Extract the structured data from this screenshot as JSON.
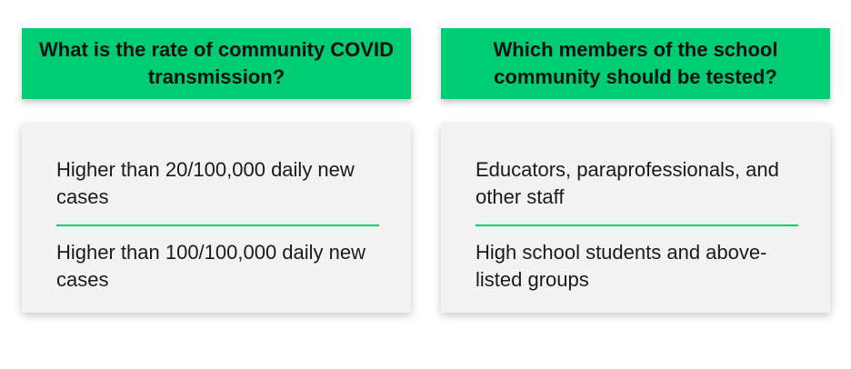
{
  "columns": [
    {
      "header": "What is the rate of community COVID transmission?",
      "rows": [
        "Higher than 20/100,000 daily new cases",
        "Higher than 100/100,000 daily new cases"
      ]
    },
    {
      "header": "Which members of the school community should be tested?",
      "rows": [
        "Educators, paraprofessionals, and other staff",
        "High school students and above-listed groups"
      ]
    }
  ],
  "colors": {
    "accent": "#00cc73",
    "panel_background": "#f3f3f3",
    "text": "#111111"
  }
}
